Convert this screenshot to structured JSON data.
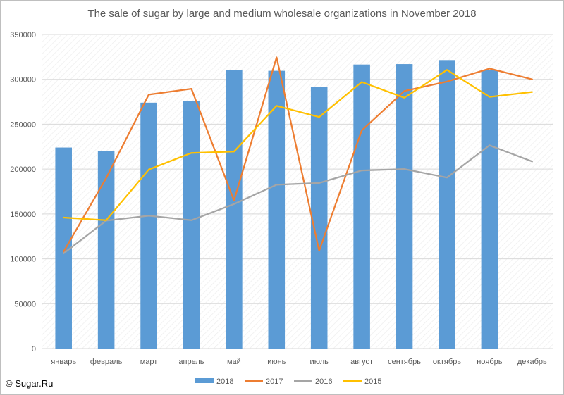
{
  "chart_data": {
    "type": "bar",
    "title": "The sale of sugar by large and medium wholesale organizations in November 2018",
    "categories": [
      "январь",
      "февраль",
      "март",
      "апрель",
      "май",
      "июнь",
      "июль",
      "август",
      "сентябрь",
      "октябрь",
      "ноябрь",
      "декабрь"
    ],
    "ylim": [
      0,
      350000
    ],
    "yticks": [
      "0",
      "50000",
      "100000",
      "150000",
      "200000",
      "250000",
      "300000",
      "350000"
    ],
    "grid": true,
    "legend_position": "bottom",
    "series": [
      {
        "name": "2018",
        "type": "bar",
        "color": "#5b9bd5",
        "values": [
          224000,
          220000,
          274000,
          275500,
          310500,
          309500,
          291500,
          316500,
          317000,
          321500,
          310500,
          null
        ]
      },
      {
        "name": "2017",
        "type": "line",
        "color": "#ed7d31",
        "values": [
          108000,
          190000,
          283000,
          289500,
          165000,
          324500,
          109000,
          243000,
          287000,
          297500,
          312000,
          300000
        ]
      },
      {
        "name": "2016",
        "type": "line",
        "color": "#a5a5a5",
        "values": [
          106000,
          142500,
          148000,
          143000,
          161000,
          182500,
          184500,
          198500,
          200000,
          190500,
          226500,
          208500
        ]
      },
      {
        "name": "2015",
        "type": "line",
        "color": "#ffc000",
        "values": [
          146000,
          143000,
          199500,
          218000,
          219500,
          270500,
          258000,
          297000,
          279500,
          310500,
          280500,
          286000
        ]
      }
    ]
  },
  "copyright": "© Sugar.Ru"
}
